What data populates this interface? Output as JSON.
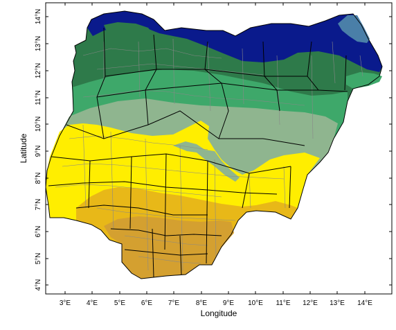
{
  "axes": {
    "xlabel": "Longitude",
    "ylabel": "Latitude",
    "x_ticks": [
      "3°E",
      "4°E",
      "5°E",
      "6°E",
      "7°E",
      "8°E",
      "9°E",
      "10°E",
      "11°E",
      "12°E",
      "13°E",
      "14°E"
    ],
    "y_ticks": [
      "4°N",
      "5°N",
      "6°N",
      "7°N",
      "8°N",
      "9°N",
      "10°N",
      "11°N",
      "12°N",
      "13°N",
      "14°N"
    ]
  },
  "zones": [
    {
      "name": "zone-dark-blue",
      "color": "#0a1a8c"
    },
    {
      "name": "zone-steel-blue",
      "color": "#4a7fa8"
    },
    {
      "name": "zone-dark-green",
      "color": "#2e7a4a"
    },
    {
      "name": "zone-medium-green",
      "color": "#3ea86a"
    },
    {
      "name": "zone-sage-green",
      "color": "#8fb58f"
    },
    {
      "name": "zone-yellow",
      "color": "#ffee00"
    },
    {
      "name": "zone-gold",
      "color": "#e8b818"
    },
    {
      "name": "zone-ochre",
      "color": "#d4a030"
    }
  ],
  "colors": {
    "state_border": "#000000",
    "lga_border": "#888888",
    "frame": "#000000"
  }
}
